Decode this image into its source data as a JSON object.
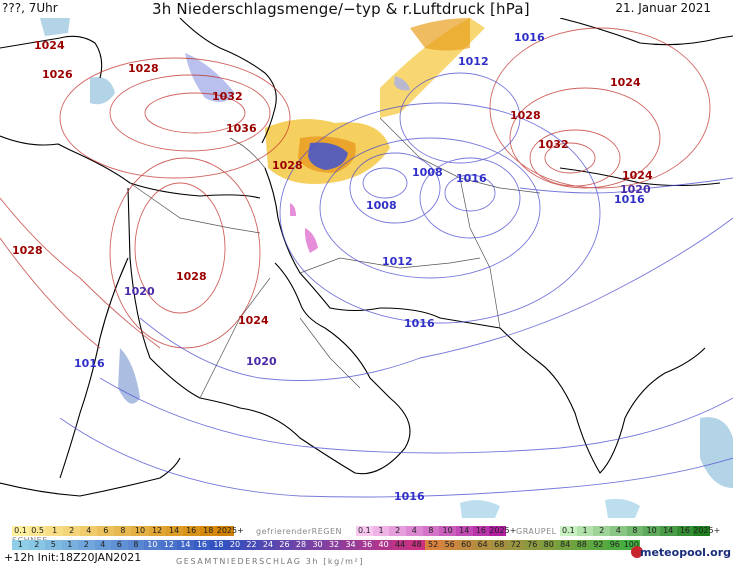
{
  "header": {
    "left": "???, 7Uhr",
    "title": "3h Niederschlagsmenge/−typ & r.Luftdruck [hPa]",
    "date": "21. Januar 2021"
  },
  "pressure_labels": [
    {
      "text": "1024",
      "kind": "hi"
    },
    {
      "text": "1026",
      "kind": "hi"
    },
    {
      "text": "1028",
      "kind": "hi"
    },
    {
      "text": "1032",
      "kind": "hi"
    },
    {
      "text": "1036",
      "kind": "hi"
    },
    {
      "text": "1028",
      "kind": "hi"
    },
    {
      "text": "1016",
      "kind": "lo"
    },
    {
      "text": "1012",
      "kind": "lo"
    },
    {
      "text": "1024",
      "kind": "hi"
    },
    {
      "text": "1028",
      "kind": "hi"
    },
    {
      "text": "1032",
      "kind": "hi"
    },
    {
      "text": "1024",
      "kind": "hi"
    },
    {
      "text": "1020",
      "kind": "mid"
    },
    {
      "text": "1016",
      "kind": "lo"
    },
    {
      "text": "1008",
      "kind": "lo"
    },
    {
      "text": "1016",
      "kind": "lo"
    },
    {
      "text": "1008",
      "kind": "lo"
    },
    {
      "text": "1028",
      "kind": "hi"
    },
    {
      "text": "1028",
      "kind": "hi"
    },
    {
      "text": "1012",
      "kind": "lo"
    },
    {
      "text": "1020",
      "kind": "mid"
    },
    {
      "text": "1024",
      "kind": "hi"
    },
    {
      "text": "1016",
      "kind": "lo"
    },
    {
      "text": "1016",
      "kind": "lo"
    },
    {
      "text": "1020",
      "kind": "mid"
    },
    {
      "text": "1016",
      "kind": "lo"
    }
  ],
  "legend": {
    "schnee_name": "SCHNEE",
    "schnee_values": [
      "0.1",
      "0.5",
      "1",
      "2",
      "4",
      "6",
      "8",
      "10",
      "12",
      "14",
      "16",
      "18",
      "2025+"
    ],
    "regen_name": "gefrierenderREGEN",
    "regen_values": [
      "0.1",
      "1",
      "2",
      "4",
      "8",
      "10",
      "14",
      "16",
      "2025+"
    ],
    "graupel_name": "GRAUPEL",
    "graupel_values": [
      "0.1",
      "1",
      "2",
      "4",
      "8",
      "10",
      "14",
      "16",
      "2025+"
    ],
    "total_values": [
      "1",
      "2",
      "5",
      "1",
      "2",
      "4",
      "6",
      "8",
      "10",
      "12",
      "14",
      "16",
      "18",
      "20",
      "22",
      "24",
      "26",
      "28",
      "30",
      "32",
      "34",
      "36",
      "40",
      "44",
      "48",
      "52",
      "56",
      "60",
      "64",
      "68",
      "72",
      "76",
      "80",
      "84",
      "88",
      "92",
      "96",
      "100"
    ],
    "colors": {
      "schnee": "#f0c040",
      "regen": "#e070d0",
      "graupel": "#40b040",
      "total_low": "#8fd0e8",
      "total_mid": "#3050c0",
      "total_high": "#e04020"
    }
  },
  "footer": {
    "init": "+12h  Init:18Z20JAN2021",
    "gesamt": "GESAMTNIEDERSCHLAG 3h [kg/m²]",
    "brand": "meteopool.org"
  }
}
